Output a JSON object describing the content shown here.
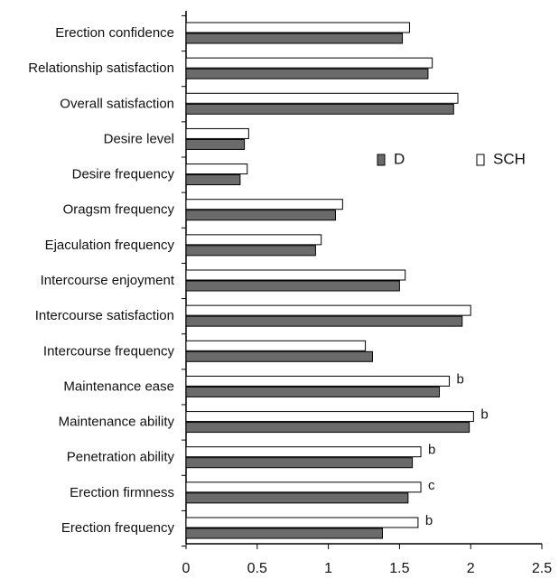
{
  "chart_data": {
    "type": "barh",
    "categories": [
      "Erection confidence",
      "Relationship satisfaction",
      "Overall satisfaction",
      "Desire level",
      "Desire frequency",
      "Oragsm frequency",
      "Ejaculation frequency",
      "Intercourse enjoyment",
      "Intercourse satisfaction",
      "Intercourse frequency",
      "Maintenance ease",
      "Maintenance ability",
      "Penetration ability",
      "Erection firmness",
      "Erection frequency"
    ],
    "series": [
      {
        "name": "SCH",
        "color": "#ffffff",
        "values": [
          1.57,
          1.73,
          1.91,
          0.44,
          0.43,
          1.1,
          0.95,
          1.54,
          2.0,
          1.26,
          1.85,
          2.02,
          1.65,
          1.65,
          1.63
        ]
      },
      {
        "name": "D",
        "color": "#6b6b6b",
        "values": [
          1.52,
          1.7,
          1.88,
          0.41,
          0.38,
          1.05,
          0.91,
          1.5,
          1.94,
          1.31,
          1.78,
          1.99,
          1.59,
          1.56,
          1.38
        ]
      }
    ],
    "annotations": [
      null,
      null,
      null,
      null,
      null,
      null,
      null,
      null,
      null,
      null,
      "b",
      "b",
      "b",
      "c",
      "b"
    ],
    "xlim": [
      0,
      2.5
    ],
    "xticks": [
      0,
      0.5,
      1,
      1.5,
      2,
      2.5
    ],
    "legend": "right"
  }
}
